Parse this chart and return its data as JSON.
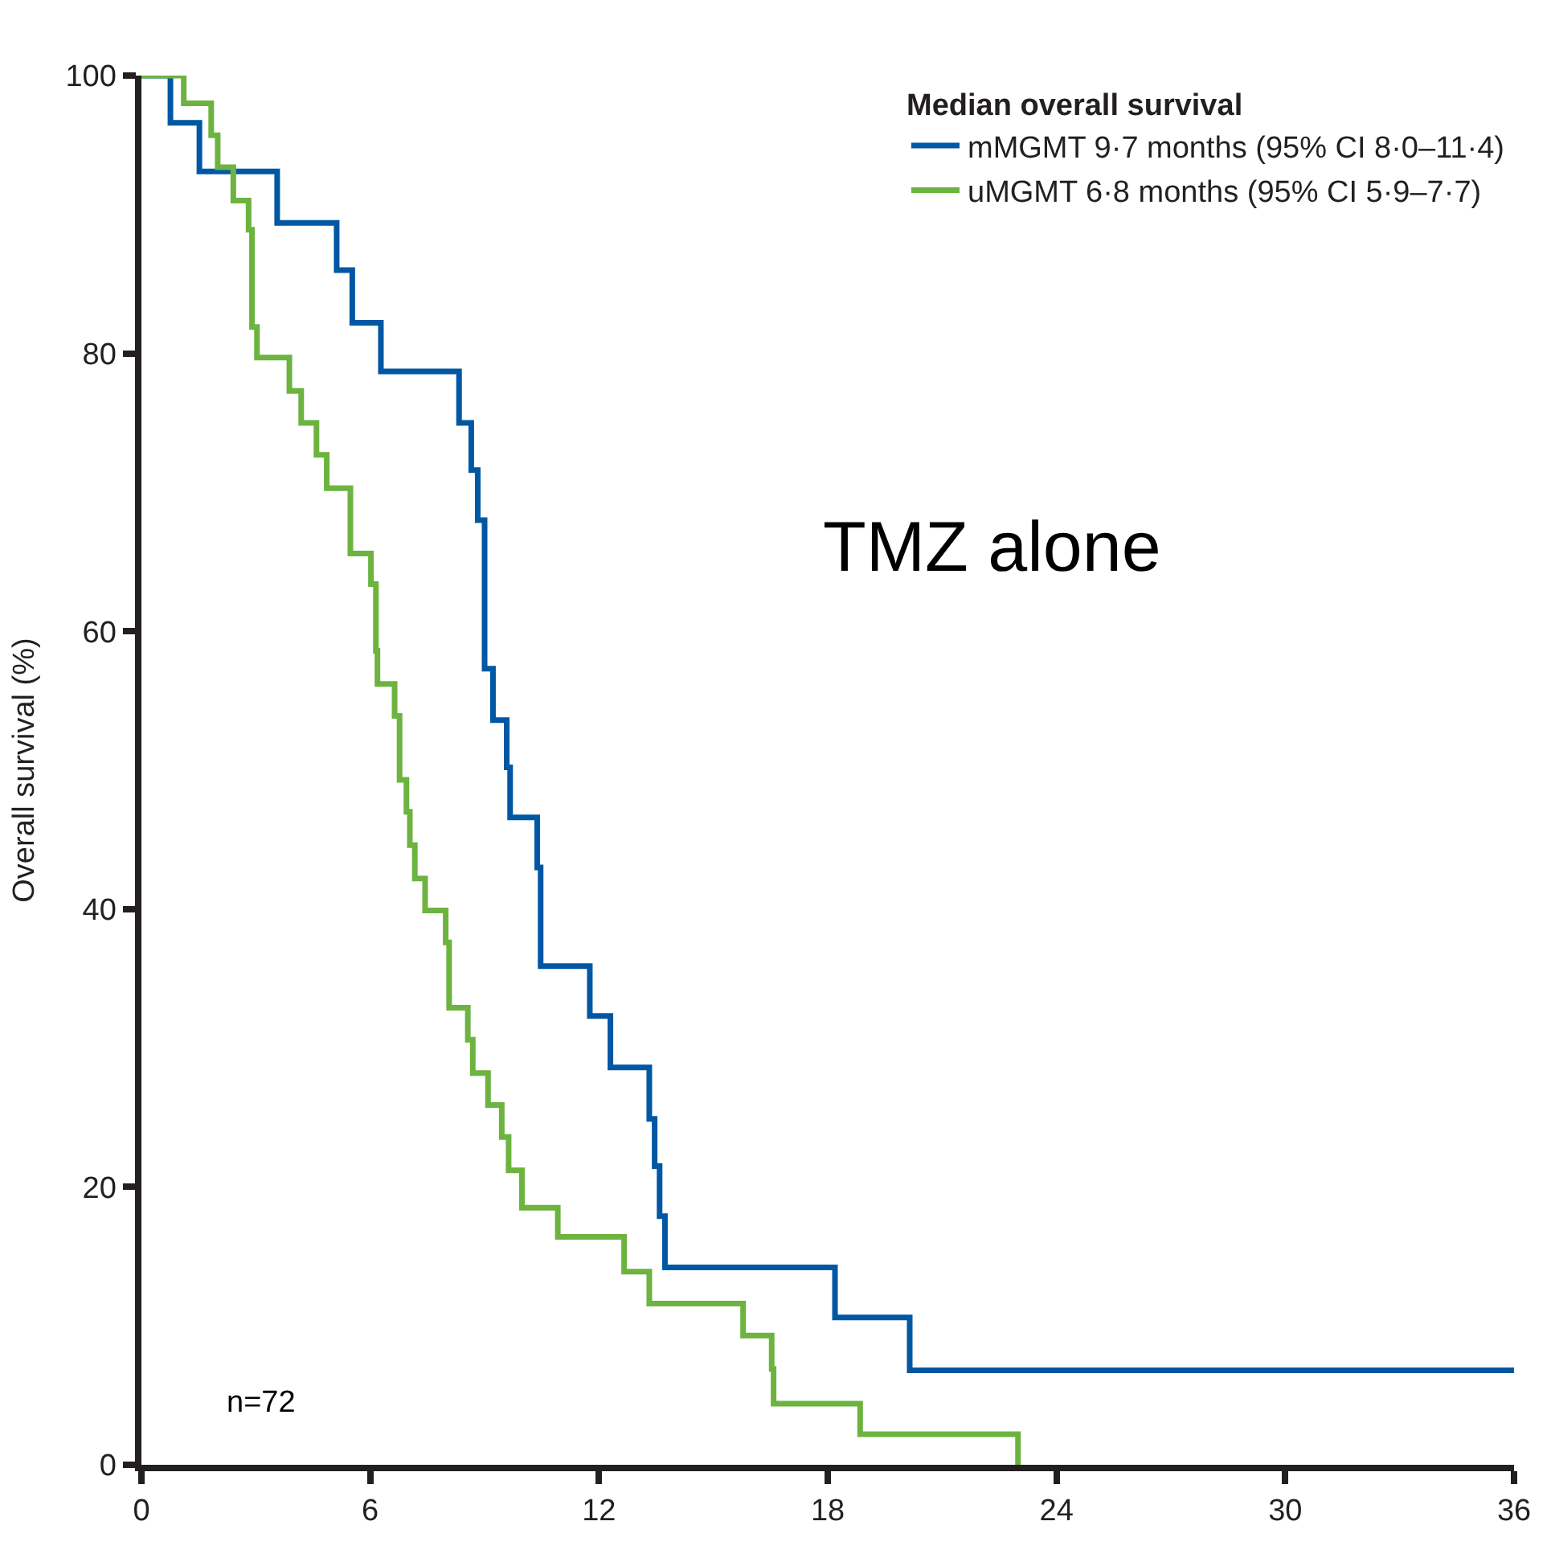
{
  "chart_data": {
    "type": "step",
    "ylabel": "Overall survival (%)",
    "legend_title": "Median overall survival",
    "legend": "top right",
    "grid": false,
    "xlim": [
      0,
      36
    ],
    "xticks": [
      0,
      6,
      12,
      18,
      24,
      30,
      36
    ],
    "ylim": [
      0,
      100
    ],
    "yticks": [
      0,
      20,
      40,
      60,
      80,
      100
    ],
    "annotations": [
      "TMZ alone",
      "n=72"
    ],
    "series": [
      {
        "name": "mMGMT 9·7 months (95% CI 8·0–11·4)",
        "color": "#0057a3",
        "x": [
          0,
          0.76,
          1.52,
          3.56,
          5.12,
          5.53,
          6.28,
          8.33,
          8.65,
          8.82,
          9.0,
          9.22,
          9.58,
          9.67,
          10.38,
          10.47,
          11.76,
          12.3,
          13.32,
          13.46,
          13.59,
          13.73,
          18.19,
          20.15,
          36
        ],
        "values": [
          100,
          96.6,
          93.1,
          89.4,
          86.0,
          82.2,
          78.7,
          75.0,
          71.6,
          68.0,
          57.3,
          53.6,
          50.2,
          46.6,
          43.0,
          35.9,
          32.3,
          28.6,
          24.9,
          21.5,
          17.9,
          14.2,
          10.6,
          6.8,
          6.8
        ]
      },
      {
        "name": "uMGMT 6·8 months (95% CI 5·9–7·7)",
        "color": "#6db33f",
        "x": [
          0,
          1.11,
          1.83,
          2.0,
          2.41,
          2.81,
          2.9,
          3.03,
          3.88,
          4.19,
          4.59,
          4.86,
          5.48,
          6.02,
          6.15,
          6.19,
          6.64,
          6.77,
          6.95,
          7.04,
          7.17,
          7.44,
          7.98,
          8.07,
          8.56,
          8.69,
          9.09,
          9.45,
          9.63,
          9.98,
          10.92,
          12.66,
          13.32,
          15.78,
          16.53,
          16.58,
          18.85,
          22.99
        ],
        "values": [
          100,
          98.0,
          95.7,
          93.4,
          91.0,
          88.9,
          81.9,
          79.7,
          77.3,
          75.0,
          72.7,
          70.3,
          65.6,
          63.4,
          58.6,
          56.2,
          53.9,
          49.3,
          47.0,
          44.6,
          42.2,
          39.9,
          37.6,
          32.9,
          30.6,
          28.2,
          25.9,
          23.6,
          21.2,
          18.5,
          16.4,
          13.9,
          11.6,
          9.3,
          6.9,
          4.4,
          2.2,
          0
        ]
      }
    ]
  }
}
